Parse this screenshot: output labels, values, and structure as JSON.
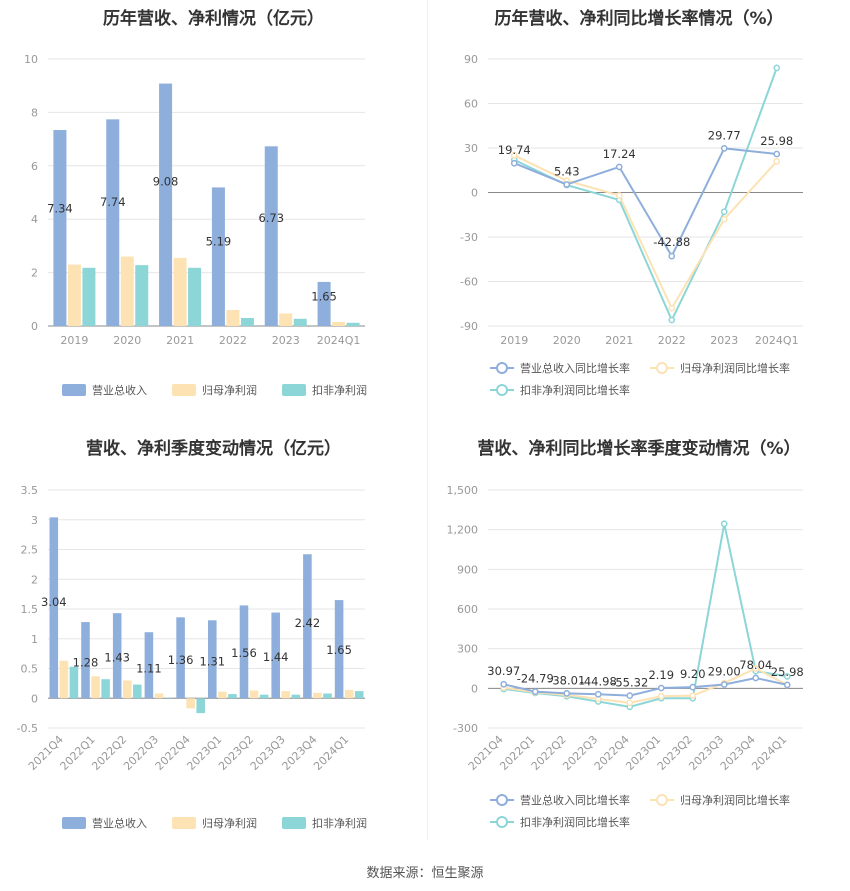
{
  "source_text": "数据来源：恒生聚源",
  "chart_data": [
    {
      "type": "bar",
      "title": "历年营收、净利情况（亿元）",
      "categories": [
        "2019",
        "2020",
        "2021",
        "2022",
        "2023",
        "2024Q1"
      ],
      "ylim": [
        0,
        10
      ],
      "yticks": [
        0,
        2,
        4,
        6,
        8,
        10
      ],
      "series": [
        {
          "name": "营业总收入",
          "color": "#8eaedc",
          "values": [
            7.34,
            7.74,
            9.08,
            5.19,
            6.73,
            1.65
          ],
          "labels": [
            "7.34",
            "7.74",
            "9.08",
            "5.19",
            "6.73",
            "1.65"
          ]
        },
        {
          "name": "归母净利润",
          "color": "#fde2b4",
          "values": [
            2.3,
            2.6,
            2.55,
            0.6,
            0.47,
            0.15
          ]
        },
        {
          "name": "扣非净利润",
          "color": "#8dd6d8",
          "values": [
            2.18,
            2.28,
            2.18,
            0.3,
            0.27,
            0.12
          ]
        }
      ],
      "legend": "bottom"
    },
    {
      "type": "line",
      "title": "历年营收、净利同比增长率情况（%）",
      "categories": [
        "2019",
        "2020",
        "2021",
        "2022",
        "2023",
        "2024Q1"
      ],
      "ylim": [
        -90,
        90
      ],
      "yticks": [
        -90,
        -60,
        -30,
        0,
        30,
        60,
        90
      ],
      "series": [
        {
          "name": "营业总收入同比增长率",
          "color": "#8eaedc",
          "values": [
            19.74,
            5.43,
            17.24,
            -42.88,
            29.77,
            25.98
          ],
          "labels": [
            "19.74",
            "5.43",
            "17.24",
            "-42.88",
            "29.77",
            "25.98"
          ]
        },
        {
          "name": "归母净利润同比增长率",
          "color": "#fde2b4",
          "values": [
            25,
            8,
            -2,
            -78,
            -18,
            21
          ]
        },
        {
          "name": "扣非净利润同比增长率",
          "color": "#8dd6d8",
          "values": [
            22,
            5,
            -5,
            -86,
            -13,
            84
          ]
        }
      ],
      "legend": "bottom"
    },
    {
      "type": "bar",
      "title": "营收、净利季度变动情况（亿元）",
      "categories": [
        "2021Q4",
        "2022Q1",
        "2022Q2",
        "2022Q3",
        "2022Q4",
        "2023Q1",
        "2023Q2",
        "2023Q3",
        "2023Q4",
        "2024Q1"
      ],
      "ylim": [
        -0.5,
        3.5
      ],
      "yticks": [
        -0.5,
        0,
        0.5,
        1,
        1.5,
        2,
        2.5,
        3,
        3.5
      ],
      "series": [
        {
          "name": "营业总收入",
          "color": "#8eaedc",
          "values": [
            3.04,
            1.28,
            1.43,
            1.11,
            1.36,
            1.31,
            1.56,
            1.44,
            2.42,
            1.65
          ],
          "labels": [
            "3.04",
            "1.28",
            "1.43",
            "1.11",
            "1.36",
            "1.31",
            "1.56",
            "1.44",
            "2.42",
            "1.65"
          ]
        },
        {
          "name": "归母净利润",
          "color": "#fde2b4",
          "values": [
            0.63,
            0.37,
            0.3,
            0.08,
            -0.17,
            0.11,
            0.13,
            0.12,
            0.09,
            0.14
          ]
        },
        {
          "name": "扣非净利润",
          "color": "#8dd6d8",
          "values": [
            0.53,
            0.32,
            0.23,
            0.0,
            -0.25,
            0.07,
            0.06,
            0.06,
            0.08,
            0.12
          ]
        }
      ],
      "legend": "bottom"
    },
    {
      "type": "line",
      "title": "营收、净利同比增长率季度变动情况（%）",
      "categories": [
        "2021Q4",
        "2022Q1",
        "2022Q2",
        "2022Q3",
        "2022Q4",
        "2023Q1",
        "2023Q2",
        "2023Q3",
        "2023Q4",
        "2024Q1"
      ],
      "ylim": [
        -300,
        1500
      ],
      "yticks": [
        -300,
        0,
        300,
        600,
        900,
        1200,
        1500
      ],
      "yticklabels": [
        "-300",
        "0",
        "300",
        "600",
        "900",
        "1,200",
        "1,500"
      ],
      "series": [
        {
          "name": "营业总收入同比增长率",
          "color": "#8eaedc",
          "values": [
            30.97,
            -24.79,
            -38.01,
            -44.98,
            -55.32,
            2.19,
            9.2,
            29.0,
            78.04,
            25.98
          ],
          "labels": [
            "30.97",
            "-24.79",
            "-38.01",
            "-44.98",
            "-55.32",
            "2.19",
            "9.20",
            "29.00",
            "78.04",
            "25.98"
          ]
        },
        {
          "name": "归母净利润同比增长率",
          "color": "#fde2b4",
          "values": [
            5,
            -30,
            -50,
            -80,
            -110,
            -60,
            -55,
            40,
            150,
            25
          ]
        },
        {
          "name": "扣非净利润同比增长率",
          "color": "#8dd6d8",
          "values": [
            -5,
            -35,
            -60,
            -100,
            -140,
            -75,
            -75,
            1245,
            130,
            90
          ]
        }
      ],
      "legend": "bottom"
    }
  ]
}
